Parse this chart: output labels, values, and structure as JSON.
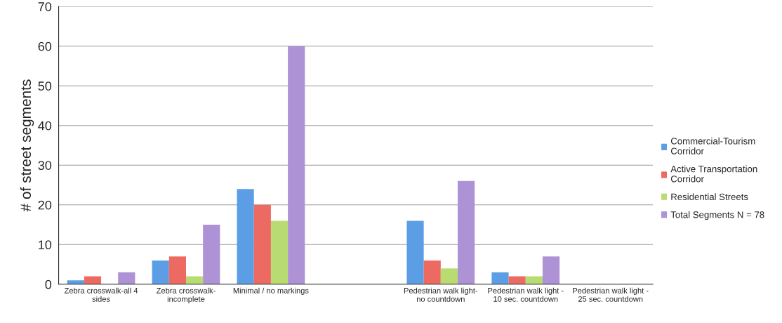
{
  "chart_data": {
    "type": "bar",
    "ylabel": "# of street segments",
    "categories": [
      "Zebra crosswalk-all 4\nsides",
      "Zebra crosswalk-\nincomplete",
      "Minimal / no markings",
      null,
      "Pedestrian walk light-\nno countdown",
      "Pedestrian walk light -\n10 sec. countdown",
      "Pedestrian walk light -\n25 sec. countdown"
    ],
    "series": [
      {
        "name": "Commercial-Tourism\nCorridor",
        "color": "#5b9ee6",
        "values": [
          1,
          6,
          24,
          null,
          16,
          3,
          0
        ]
      },
      {
        "name": "Active Transportation\nCorridor",
        "color": "#ec6a62",
        "values": [
          2,
          7,
          20,
          null,
          6,
          2,
          0
        ]
      },
      {
        "name": "Residential Streets",
        "color": "#b9dc72",
        "values": [
          0,
          2,
          16,
          null,
          4,
          2,
          0
        ]
      },
      {
        "name": "Total Segments N = 78",
        "color": "#ad92d6",
        "values": [
          3,
          15,
          60,
          null,
          26,
          7,
          0
        ]
      }
    ],
    "ylim": [
      0,
      70
    ],
    "yticks": [
      0,
      10,
      20,
      30,
      40,
      50,
      60,
      70
    ],
    "grid": "y",
    "legend": "right"
  }
}
